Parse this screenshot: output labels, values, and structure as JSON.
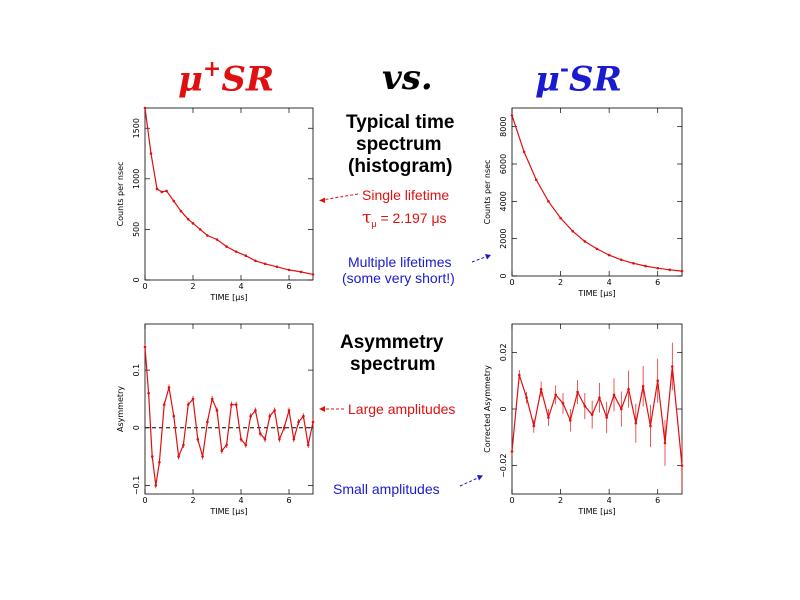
{
  "title": {
    "left_greek": "μ",
    "left_sup": "+",
    "left_rest": "SR",
    "vs": "vs.",
    "right_greek": "μ",
    "right_sup": "-",
    "right_rest": "SR"
  },
  "labels": {
    "time_spectrum": [
      "Typical time",
      "spectrum",
      "(histogram)"
    ],
    "asym_spectrum": [
      "Asymmetry",
      "spectrum"
    ]
  },
  "annotations": {
    "single_lifetime": "Single lifetime",
    "tau_symbol": "τ",
    "tau_sub": "μ",
    "tau_value": " = 2.197 μs",
    "multiple_lifetimes": "Multiple lifetimes",
    "very_short": "(some very short!)",
    "large_amplitudes": "Large amplitudes",
    "small_amplitudes": "Small amplitudes"
  },
  "colors": {
    "red": "#e01010",
    "blue": "#1a1ad0"
  },
  "chart_data": [
    {
      "id": "muplus-hist",
      "type": "line",
      "xlabel": "TIME [μs]",
      "ylabel": "Counts per nsec",
      "xlim": [
        0,
        7
      ],
      "ylim": [
        0,
        1700
      ],
      "xticks": [
        0,
        2,
        4,
        6
      ],
      "yticks": [
        0,
        500,
        1000,
        1500
      ],
      "xtick_labels": [
        "0",
        "2",
        "4",
        "6"
      ],
      "ytick_labels": [
        "0",
        "500",
        "1000",
        "1500"
      ],
      "x": [
        0,
        0.25,
        0.5,
        0.7,
        0.9,
        1.2,
        1.5,
        1.8,
        2.0,
        2.3,
        2.6,
        3.0,
        3.4,
        3.8,
        4.2,
        4.6,
        5.0,
        5.5,
        6.0,
        6.5,
        7.0
      ],
      "y": [
        1700,
        1250,
        900,
        870,
        880,
        780,
        680,
        600,
        560,
        500,
        440,
        400,
        330,
        280,
        240,
        190,
        160,
        130,
        100,
        80,
        55
      ]
    },
    {
      "id": "muminus-hist",
      "type": "line",
      "xlabel": "TIME [μs]",
      "ylabel": "Counts per nsec",
      "xlim": [
        0,
        7
      ],
      "ylim": [
        0,
        9000
      ],
      "xticks": [
        0,
        2,
        4,
        6
      ],
      "yticks": [
        0,
        2000,
        4000,
        6000,
        8000
      ],
      "xtick_labels": [
        "0",
        "2",
        "4",
        "6"
      ],
      "ytick_labels": [
        "0",
        "2000",
        "4000",
        "6000",
        "8000"
      ],
      "x": [
        0,
        0.5,
        1,
        1.5,
        2,
        2.5,
        3,
        3.5,
        4,
        4.5,
        5,
        5.5,
        6,
        6.5,
        7
      ],
      "y": [
        8600,
        6650,
        5150,
        4000,
        3100,
        2400,
        1850,
        1450,
        1120,
        870,
        680,
        530,
        420,
        330,
        260
      ]
    },
    {
      "id": "muplus-asym",
      "type": "line",
      "xlabel": "TIME [μs]",
      "ylabel": "Asymmetry",
      "xlim": [
        0,
        7
      ],
      "ylim": [
        -0.115,
        0.18
      ],
      "xticks": [
        0,
        2,
        4,
        6
      ],
      "yticks": [
        -0.1,
        0,
        0.1
      ],
      "xtick_labels": [
        "0",
        "2",
        "4",
        "6"
      ],
      "ytick_labels": [
        "−0.1",
        "0",
        "0.1"
      ],
      "x": [
        0,
        0.15,
        0.3,
        0.45,
        0.6,
        0.8,
        1.0,
        1.2,
        1.4,
        1.6,
        1.8,
        2.0,
        2.2,
        2.4,
        2.6,
        2.8,
        3.0,
        3.2,
        3.4,
        3.6,
        3.8,
        4.0,
        4.2,
        4.4,
        4.6,
        4.8,
        5.0,
        5.2,
        5.4,
        5.6,
        5.8,
        6.0,
        6.2,
        6.4,
        6.6,
        6.8,
        7.0
      ],
      "y": [
        0.14,
        0.06,
        -0.05,
        -0.1,
        -0.06,
        0.04,
        0.07,
        0.02,
        -0.05,
        -0.03,
        0.04,
        0.05,
        -0.02,
        -0.05,
        0.01,
        0.05,
        0.03,
        -0.04,
        -0.03,
        0.04,
        0.04,
        -0.02,
        -0.03,
        0.02,
        0.03,
        -0.01,
        -0.02,
        0.02,
        0.03,
        -0.02,
        0.0,
        0.03,
        -0.02,
        0.01,
        0.02,
        -0.03,
        0.01
      ],
      "baseline": 0
    },
    {
      "id": "muminus-asym",
      "type": "line",
      "xlabel": "TIME [μs]",
      "ylabel": "Corrected Asymmetry",
      "xlim": [
        0,
        7
      ],
      "ylim": [
        -0.03,
        0.03
      ],
      "xticks": [
        0,
        2,
        4,
        6
      ],
      "yticks": [
        -0.02,
        0,
        0.02
      ],
      "xtick_labels": [
        "0",
        "2",
        "4",
        "6"
      ],
      "ytick_labels": [
        "−0.02",
        "0",
        "0.02"
      ],
      "x": [
        0,
        0.3,
        0.6,
        0.9,
        1.2,
        1.5,
        1.8,
        2.1,
        2.4,
        2.7,
        3.0,
        3.3,
        3.6,
        3.9,
        4.2,
        4.5,
        4.8,
        5.1,
        5.4,
        5.7,
        6.0,
        6.3,
        6.6,
        7.0
      ],
      "y": [
        -0.015,
        0.012,
        0.004,
        -0.006,
        0.007,
        -0.003,
        0.005,
        0.002,
        -0.004,
        0.006,
        0.001,
        -0.002,
        0.004,
        -0.003,
        0.005,
        0.0,
        0.007,
        -0.005,
        0.008,
        -0.006,
        0.01,
        -0.012,
        0.015,
        -0.02
      ]
    }
  ]
}
